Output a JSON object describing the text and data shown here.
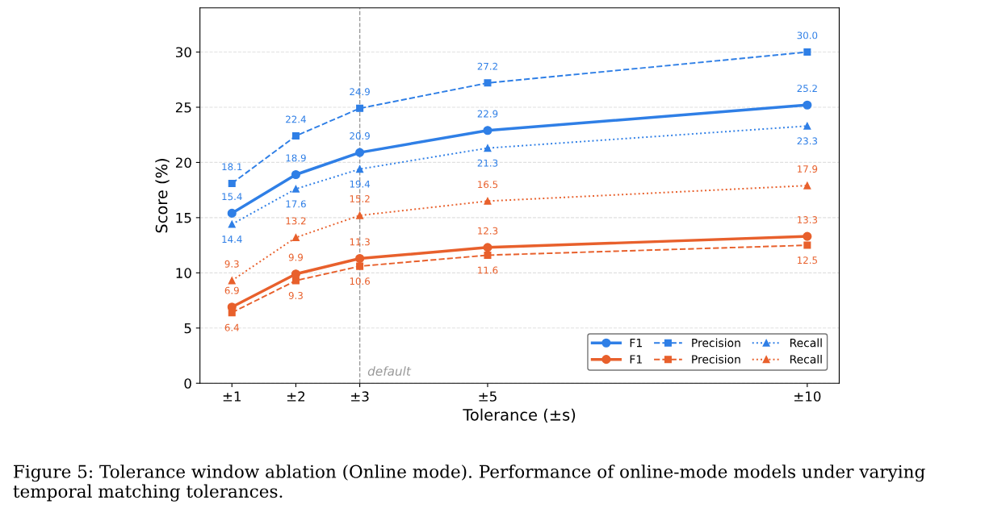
{
  "chart_data": {
    "type": "line",
    "xlabel": "Tolerance (±s)",
    "ylabel": "Score (%)",
    "x": [
      1,
      2,
      3,
      5,
      10
    ],
    "xlim": [
      0.5,
      10.5
    ],
    "xticks": [
      {
        "value": 1,
        "label": "±1"
      },
      {
        "value": 2,
        "label": "±2"
      },
      {
        "value": 3,
        "label": "±3"
      },
      {
        "value": 5,
        "label": "±5"
      },
      {
        "value": 10,
        "label": "±10"
      }
    ],
    "ylim": [
      0,
      34
    ],
    "yticks": [
      0,
      5,
      10,
      15,
      20,
      25,
      30
    ],
    "grid": "y",
    "legend": "bottom right",
    "data_labels": true,
    "series": [
      {
        "name": "F1",
        "color": "#2f7fe6",
        "marker": "circle",
        "line_style": "solid",
        "values": [
          15.4,
          18.9,
          20.9,
          22.9,
          25.2
        ]
      },
      {
        "name": "Precision",
        "color": "#2f7fe6",
        "marker": "square",
        "line_style": "dashed",
        "values": [
          18.1,
          22.4,
          24.9,
          27.2,
          30.0
        ],
        "value_labels": [
          "18.1",
          "22.4",
          "24.9",
          "27.2",
          "30.0"
        ]
      },
      {
        "name": "Recall",
        "color": "#2f7fe6",
        "marker": "triangle",
        "line_style": "dotted",
        "values": [
          14.4,
          17.6,
          19.4,
          21.3,
          23.3
        ]
      },
      {
        "name": "F1",
        "color": "#e8602c",
        "marker": "circle",
        "line_style": "solid",
        "values": [
          6.9,
          9.9,
          11.3,
          12.3,
          13.3
        ]
      },
      {
        "name": "Precision",
        "color": "#e8602c",
        "marker": "square",
        "line_style": "dashed",
        "values": [
          6.4,
          9.3,
          10.6,
          11.6,
          12.5
        ]
      },
      {
        "name": "Recall",
        "color": "#e8602c",
        "marker": "triangle",
        "line_style": "dotted",
        "values": [
          9.3,
          13.2,
          15.2,
          16.5,
          17.9
        ]
      }
    ],
    "ref_lines": [
      {
        "axis": "x",
        "value": 3,
        "label": "default",
        "color": "#999999",
        "line_style": "dashed"
      }
    ],
    "annotations": [
      "Figure 5: Tolerance window ablation (Online mode). Performance of online-mode models under varying temporal matching tolerances."
    ]
  }
}
